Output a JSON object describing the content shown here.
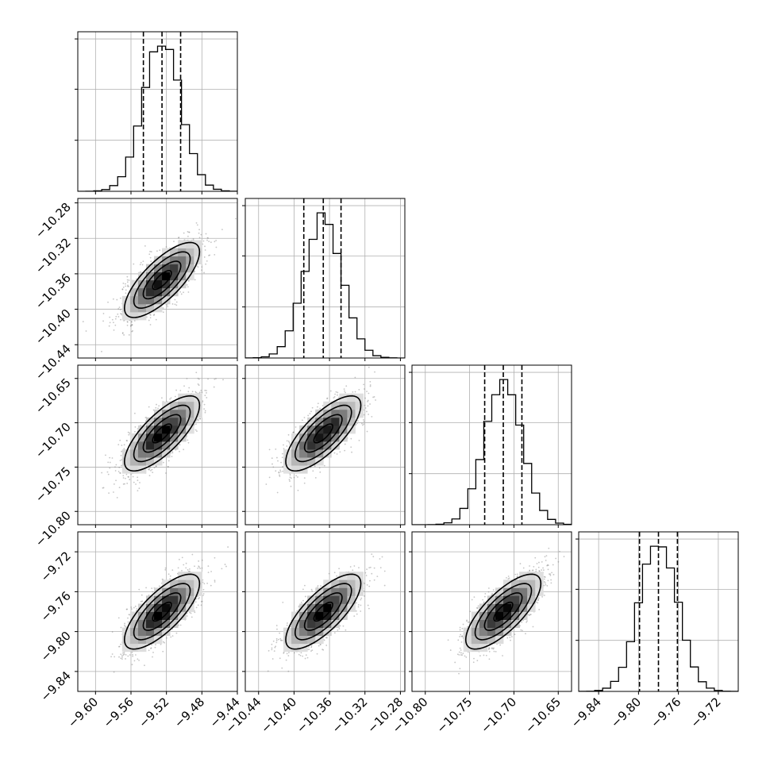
{
  "chart_data": {
    "type": "corner",
    "n_params": 4,
    "params": [
      {
        "index": 0,
        "range": [
          -9.62,
          -9.44
        ],
        "ticks": [
          "−9.60",
          "−9.56",
          "−9.52",
          "−9.48",
          "−9.44"
        ],
        "tick_values": [
          -9.6,
          -9.56,
          -9.52,
          -9.48,
          -9.44
        ],
        "mean": -9.525,
        "sigma": 0.0212,
        "quantiles": [
          -9.546,
          -9.525,
          -9.504
        ]
      },
      {
        "index": 1,
        "range": [
          -10.455,
          -10.275
        ],
        "ticks": [
          "−10.44",
          "−10.40",
          "−10.36",
          "−10.32",
          "−10.28"
        ],
        "tick_values": [
          -10.44,
          -10.4,
          -10.36,
          -10.32,
          -10.28
        ],
        "mean": -10.367,
        "sigma": 0.0212,
        "quantiles": [
          -10.389,
          -10.367,
          -10.347
        ]
      },
      {
        "index": 2,
        "range": [
          -10.815,
          -10.635
        ],
        "ticks": [
          "−10.80",
          "−10.75",
          "−10.70",
          "−10.65"
        ],
        "tick_values": [
          -10.8,
          -10.75,
          -10.7,
          -10.65
        ],
        "mean": -10.712,
        "sigma": 0.0212,
        "quantiles": [
          -10.733,
          -10.712,
          -10.691
        ]
      },
      {
        "index": 3,
        "range": [
          -9.86,
          -9.7
        ],
        "ticks": [
          "−9.84",
          "−9.80",
          "−9.76",
          "−9.72"
        ],
        "tick_values": [
          -9.84,
          -9.8,
          -9.76,
          -9.72
        ],
        "mean": -9.78,
        "sigma": 0.0188,
        "quantiles": [
          -9.799,
          -9.78,
          -9.761
        ]
      }
    ],
    "correlation": 0.75,
    "histogram_bins": 20,
    "contour_levels": [
      0.118,
      0.393,
      0.675,
      0.864
    ],
    "quantile_line_style": "dashed",
    "grid": true,
    "title": "",
    "legend": "none"
  }
}
